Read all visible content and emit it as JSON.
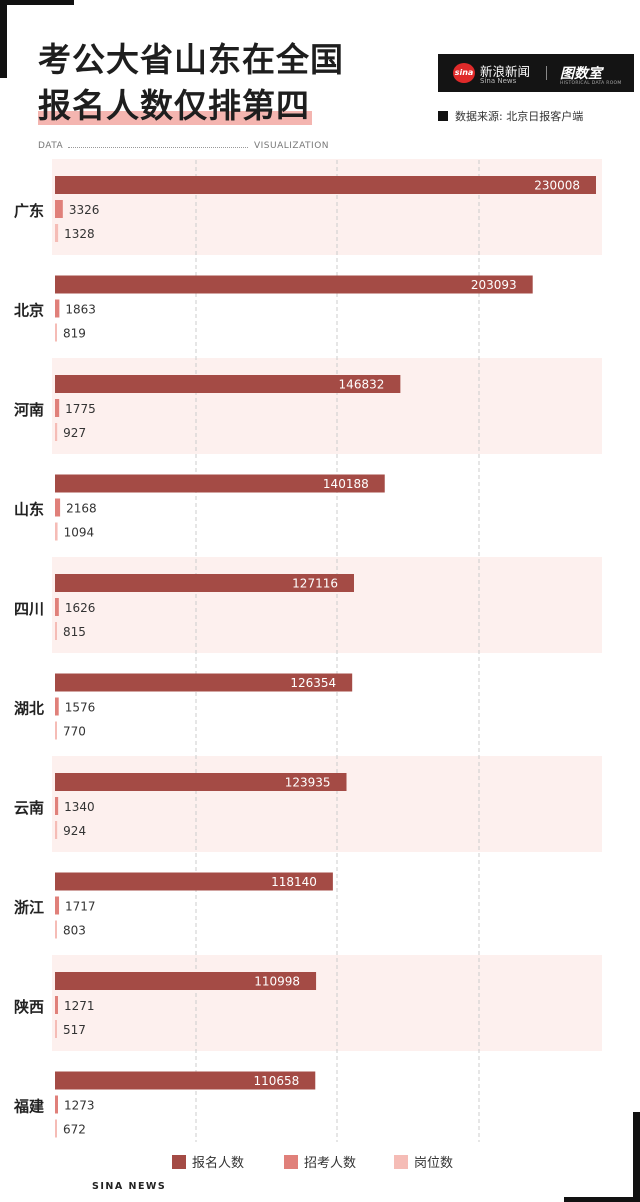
{
  "header": {
    "title_line1": "考公大省山东在全国",
    "title_line2": "报名人数仅排第四",
    "source_label": "数据来源: 北京日报客户端",
    "data_label": "DATA",
    "visualization_label": "VISUALIZATION",
    "brand_name": "新浪新闻",
    "brand_sub": "Sina News",
    "brand_logo": "sina",
    "brand_partner": "图数室",
    "brand_partner_sub": "HISTORICAL DATA ROOM"
  },
  "footer": {
    "label": "SINA NEWS"
  },
  "colors": {
    "registrants": "#a44b45",
    "recruits": "#e0807a",
    "positions": "#f5bcb6",
    "band": "#fdf0ee",
    "grid": "#cccccc"
  },
  "chart_data": {
    "type": "bar",
    "orientation": "horizontal",
    "categories": [
      "广东",
      "北京",
      "河南",
      "山东",
      "四川",
      "湖北",
      "云南",
      "浙江",
      "陕西",
      "福建"
    ],
    "series": [
      {
        "name": "报名人数",
        "values": [
          230008,
          203093,
          146832,
          140188,
          127116,
          126354,
          123935,
          118140,
          110998,
          110658
        ]
      },
      {
        "name": "招考人数",
        "values": [
          3326,
          1863,
          1775,
          2168,
          1626,
          1576,
          1340,
          1717,
          1271,
          1273
        ]
      },
      {
        "name": "岗位数",
        "values": [
          1328,
          819,
          927,
          1094,
          815,
          770,
          924,
          803,
          517,
          672
        ]
      }
    ],
    "xlim": [
      0,
      230008
    ],
    "grid": true,
    "legend_position": "bottom"
  }
}
